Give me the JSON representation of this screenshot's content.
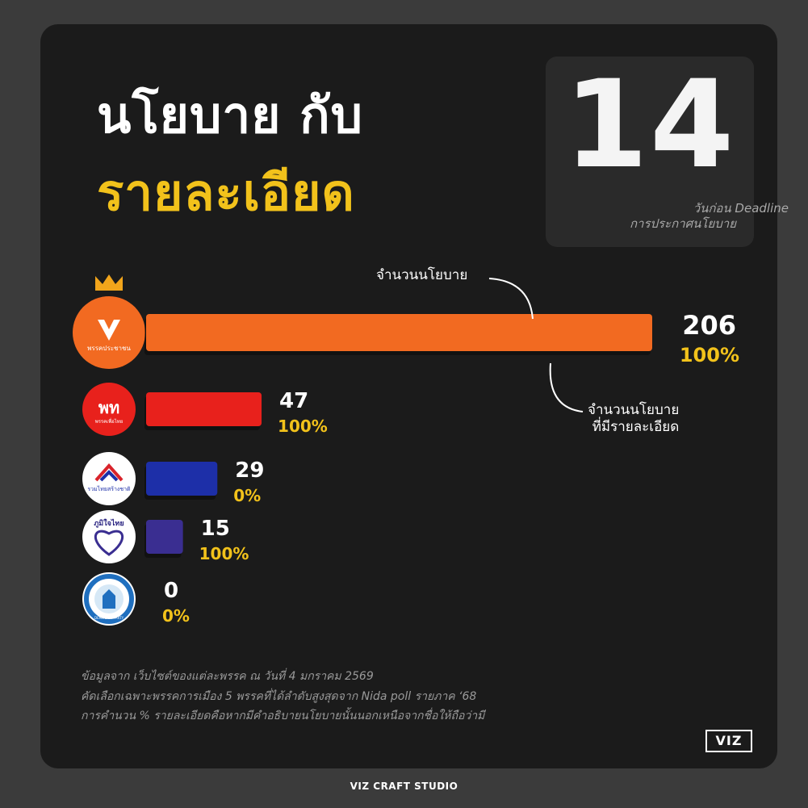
{
  "title": {
    "line1": "นโยบาย กับ",
    "line2": "รายละเอียด"
  },
  "countdown": {
    "number": "14",
    "caption_line1": "วันก่อน Deadline",
    "caption_line2": "การประกาศนโยบาย"
  },
  "annotations": {
    "policy_count": "จำนวนนโยบาย",
    "detailed_line1": "จำนวนนโยบาย",
    "detailed_line2": "ที่มีรายละเอียด"
  },
  "colors": {
    "background": "#3b3b3b",
    "card": "#1b1b1b",
    "title_accent": "#f2c21b",
    "percent_text": "#f2c21b"
  },
  "chart_data": {
    "type": "bar",
    "orientation": "horizontal",
    "categories": [
      "พรรคประชาชน",
      "พรรคเพื่อไทย",
      "รวมไทยสร้างชาติ",
      "ภูมิใจไทย",
      "ประชาธิปัตย์"
    ],
    "series": [
      {
        "name": "จำนวนนโยบาย",
        "values": [
          206,
          47,
          29,
          15,
          0
        ]
      }
    ],
    "percent_labels": [
      "100%",
      "100%",
      "0%",
      "100%",
      "0%"
    ],
    "bar_colors": [
      "#f26a21",
      "#e8211c",
      "#1d2fa8",
      "#3a2e91",
      "#1f6fbf"
    ],
    "xlim": [
      0,
      206
    ],
    "grid": false,
    "legend": "none"
  },
  "parties": [
    {
      "logo_text": "พรรคประชาชน",
      "logo_mark": "V",
      "logo_bg": "#f26a21",
      "logo_fg": "#ffffff",
      "crown_icon": "crown-icon"
    },
    {
      "logo_text": "พรรคเพื่อไทย",
      "logo_mark": "พท",
      "logo_bg": "#e8211c",
      "logo_fg": "#ffffff"
    },
    {
      "logo_text": "รวมไทยสร้างชาติ",
      "logo_mark": "",
      "logo_bg": "#ffffff",
      "logo_fg": "#1d2fa8"
    },
    {
      "logo_text": "ภูมิใจไทย",
      "logo_mark": "",
      "logo_bg": "#ffffff",
      "logo_fg": "#2b2582"
    },
    {
      "logo_text": "DEMOCRAT PARTY",
      "logo_mark": "",
      "logo_bg": "#ffffff",
      "logo_fg": "#1f6fbf"
    }
  ],
  "source": {
    "line1": "ข้อมูลจาก เว็บไซต์ของแต่ละพรรค ณ วันที่ 4 มกราคม 2569",
    "line2": "คัดเลือกเฉพาะพรรคการเมือง 5 พรรคที่ได้ลำดับสูงสุดจาก Nida poll รายภาค ‘68",
    "line3": "การคำนวน % รายละเอียดคือหากมีคำอธิบายนโยบายนั้นนอกเหนือจากชื่อให้ถือว่ามี"
  },
  "brand": {
    "logo_text": "VIZ",
    "footer": "VIZ CRAFT STUDIO"
  }
}
